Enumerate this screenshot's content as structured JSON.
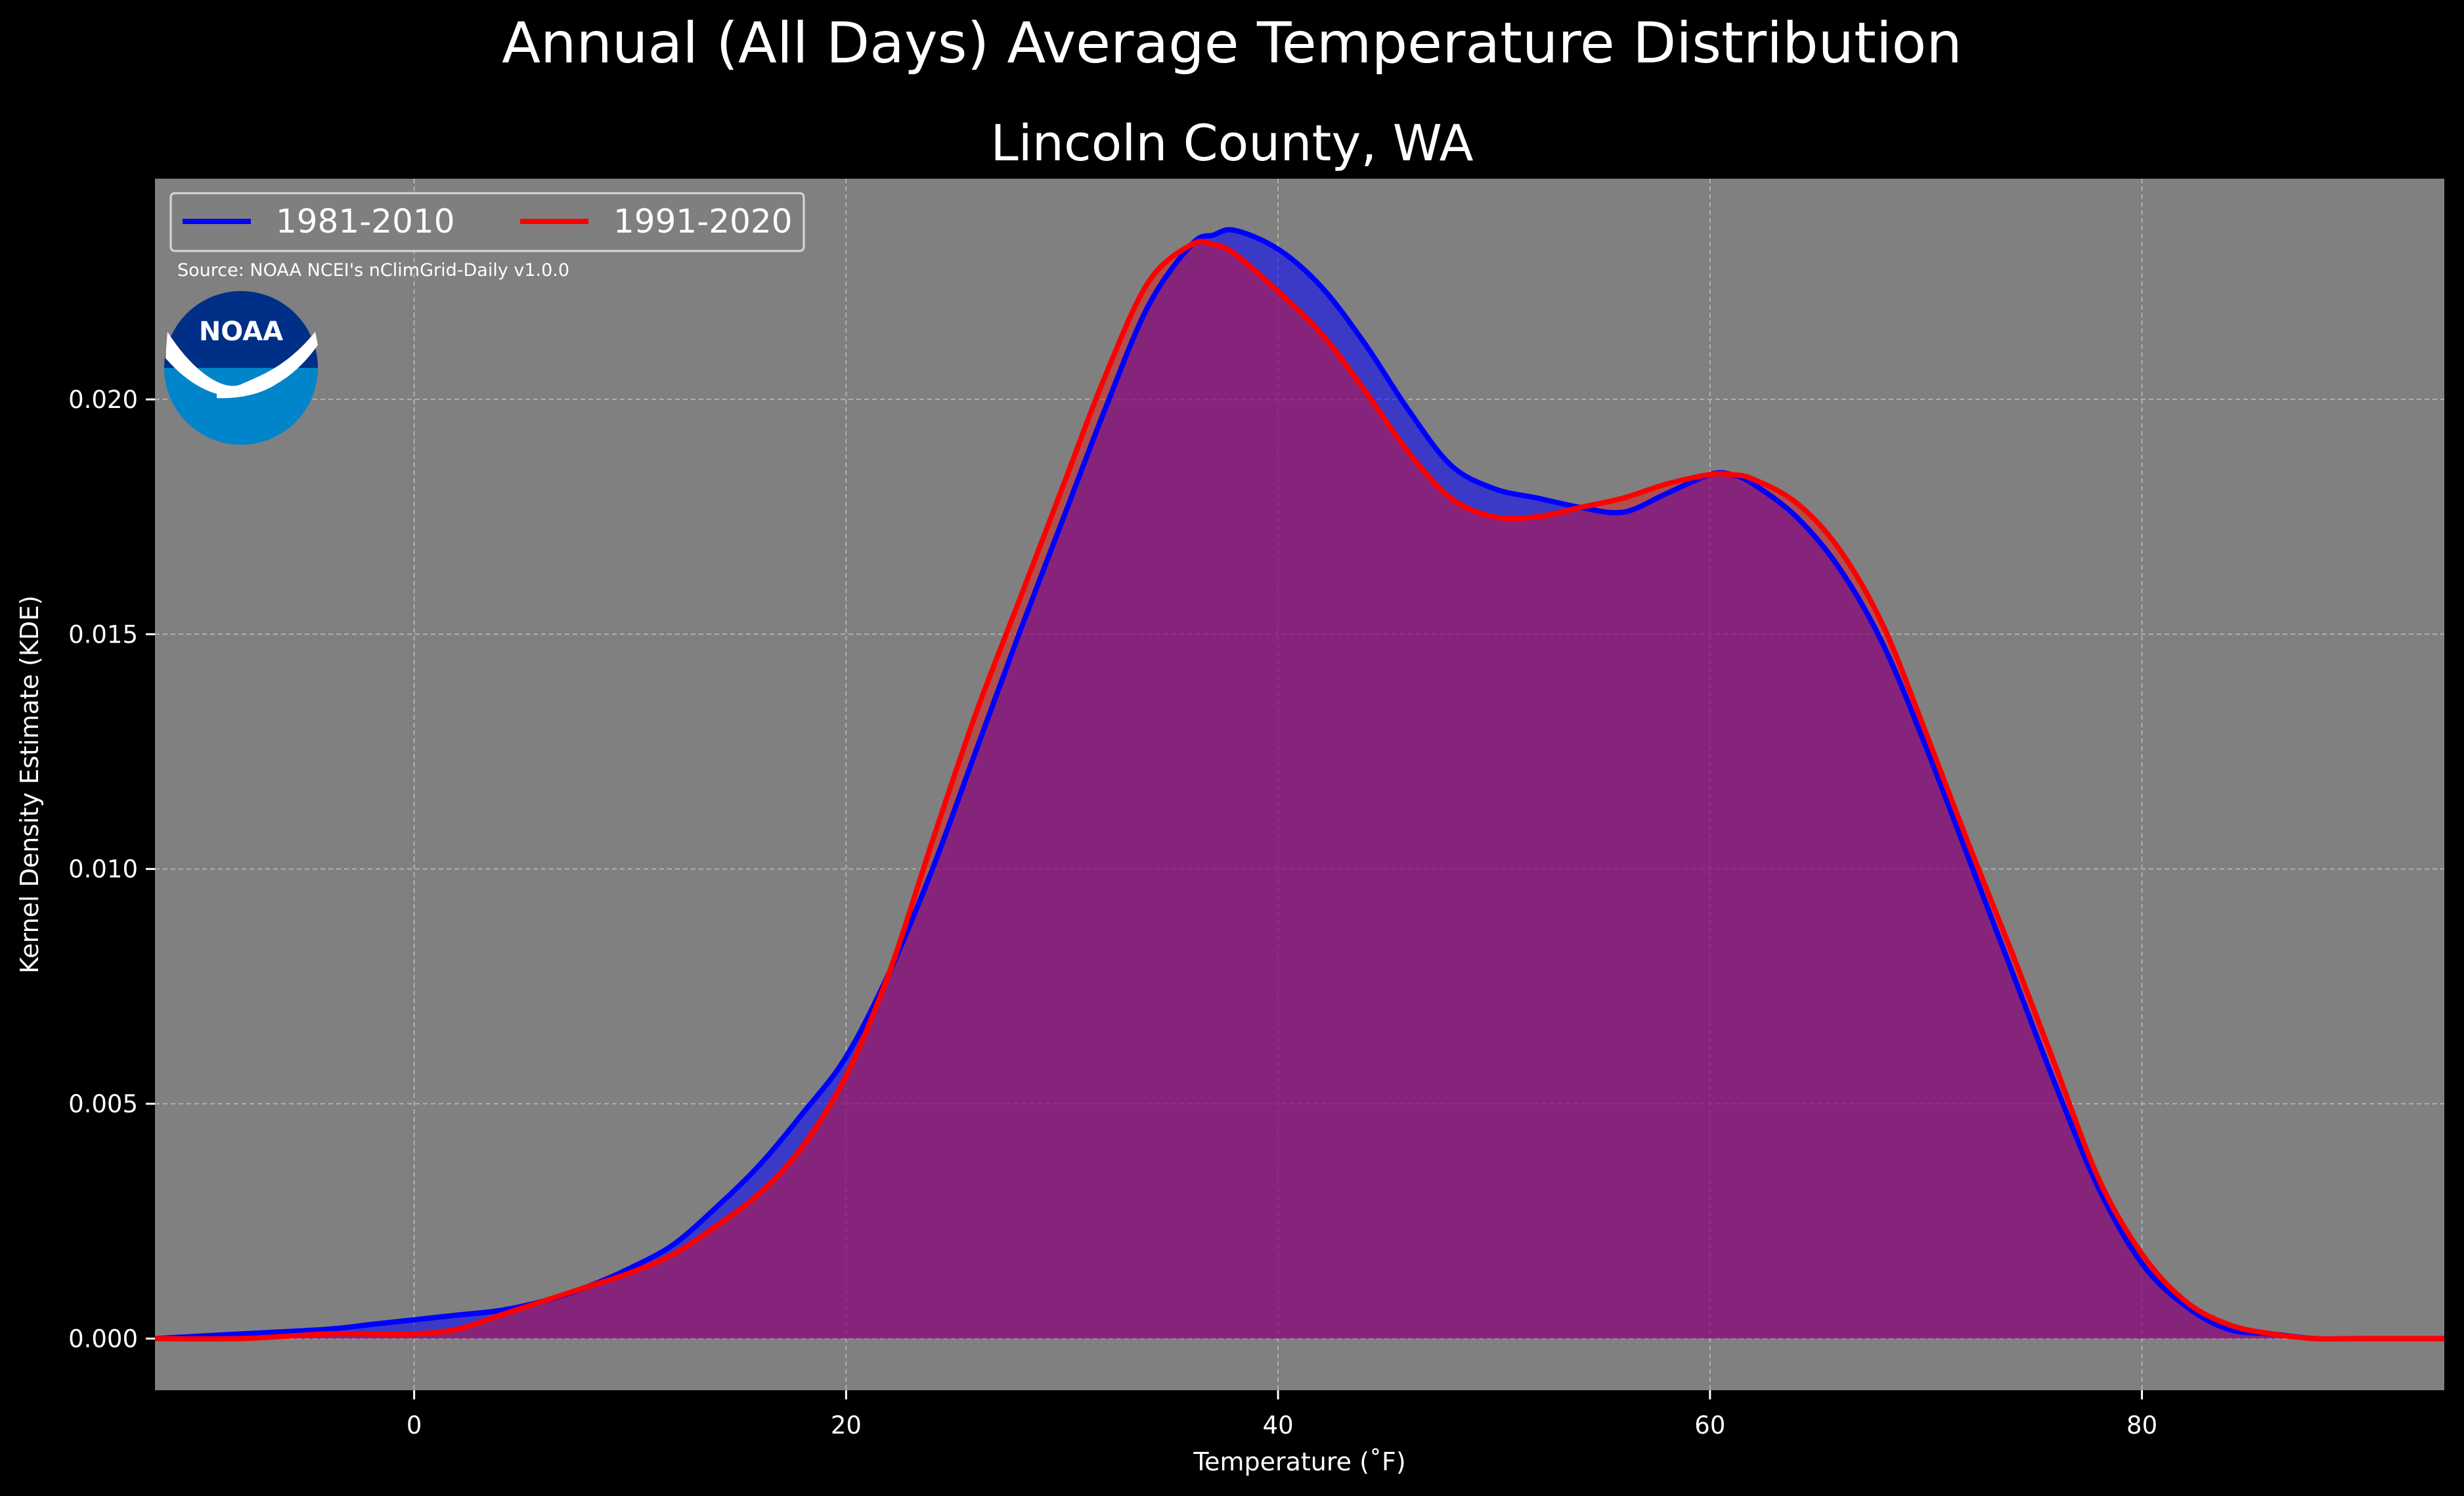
{
  "suptitle": "Annual (All Days) Average Temperature Distribution",
  "logo_text": "NOAA",
  "colors": {
    "background": "#000000",
    "plot_background": "#808080",
    "series_1981": "#0000ff",
    "series_1991": "#ff0000",
    "overlap_fill": "#9c1f5c",
    "logo_outer": "#0085ca",
    "logo_inner": "#002f87"
  },
  "chart_data": {
    "type": "area",
    "title": "Lincoln County, WA",
    "xlabel": "Temperature (˚F)",
    "ylabel": "Kernel Density Estimate (KDE)",
    "xlim": [
      -12,
      94
    ],
    "ylim": [
      -0.0011,
      0.0247
    ],
    "xticks": [
      0,
      20,
      40,
      60,
      80
    ],
    "yticks": [
      0.0,
      0.005,
      0.01,
      0.015,
      0.02
    ],
    "ytick_labels": [
      "0.000",
      "0.005",
      "0.010",
      "0.015",
      "0.020"
    ],
    "grid": true,
    "legend_position": "top-left",
    "source_note": "Source: NOAA NCEI's nClimGrid-Daily v1.0.0",
    "x": [
      -12,
      -8,
      -4,
      -2,
      0,
      2,
      4,
      6,
      8,
      10,
      12,
      14,
      16,
      18,
      20,
      22,
      24,
      26,
      28,
      30,
      32,
      34,
      36,
      37,
      38,
      40,
      42,
      44,
      46,
      48,
      50,
      52,
      54,
      56,
      58,
      60,
      61,
      62,
      64,
      66,
      68,
      70,
      72,
      74,
      76,
      78,
      80,
      82,
      84,
      86,
      88,
      90,
      92,
      94
    ],
    "series": [
      {
        "name": "1981-2010",
        "values": [
          0.0,
          0.0001,
          0.0002,
          0.0003,
          0.0004,
          0.0005,
          0.0006,
          0.0008,
          0.0011,
          0.0015,
          0.002,
          0.0028,
          0.0037,
          0.0048,
          0.006,
          0.0078,
          0.01,
          0.0125,
          0.015,
          0.0174,
          0.0198,
          0.022,
          0.0233,
          0.0235,
          0.0236,
          0.0232,
          0.0224,
          0.0212,
          0.0198,
          0.0186,
          0.0181,
          0.0179,
          0.0177,
          0.0176,
          0.018,
          0.0184,
          0.0184,
          0.0182,
          0.0175,
          0.0164,
          0.0148,
          0.0126,
          0.0102,
          0.0078,
          0.0054,
          0.0032,
          0.0016,
          0.0007,
          0.0002,
          0.0001,
          0.0,
          0.0,
          0.0,
          0.0
        ]
      },
      {
        "name": "1991-2020",
        "values": [
          0.0,
          0.0,
          0.0001,
          0.0001,
          0.0001,
          0.0002,
          0.0005,
          0.0008,
          0.0011,
          0.0014,
          0.0018,
          0.0024,
          0.0031,
          0.0041,
          0.0056,
          0.0078,
          0.0106,
          0.0133,
          0.0157,
          0.0181,
          0.0205,
          0.0225,
          0.0233,
          0.0233,
          0.0231,
          0.0223,
          0.0214,
          0.0202,
          0.0189,
          0.0179,
          0.0175,
          0.0175,
          0.0177,
          0.0179,
          0.0182,
          0.0184,
          0.0184,
          0.0183,
          0.0178,
          0.0168,
          0.0152,
          0.0129,
          0.0105,
          0.0082,
          0.0058,
          0.0034,
          0.0018,
          0.0008,
          0.0003,
          0.0001,
          0.0,
          0.0,
          0.0,
          0.0
        ]
      }
    ]
  }
}
